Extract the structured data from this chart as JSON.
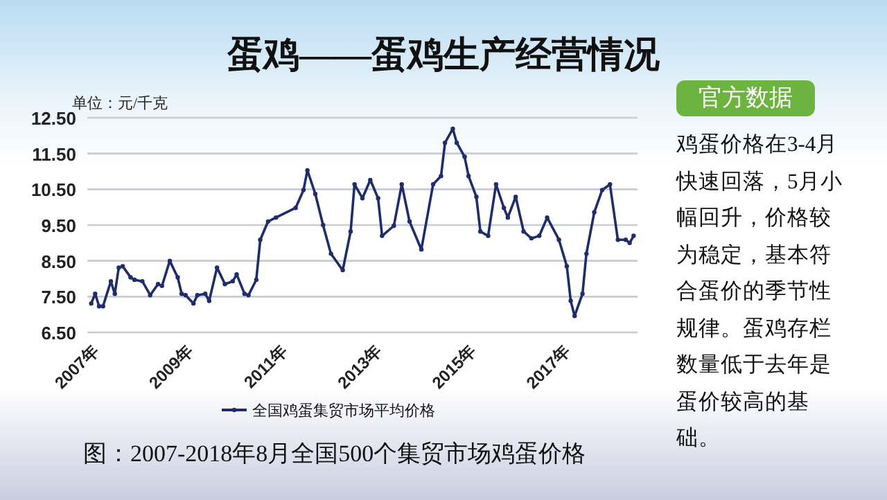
{
  "chart_data": {
    "type": "line",
    "title": "蛋鸡——蛋鸡生产经营情况",
    "ylabel": "单位：元/千克",
    "x": [
      "2007-01",
      "2007-02",
      "2007-03",
      "2007-04",
      "2007-06",
      "2007-07",
      "2007-08",
      "2007-09",
      "2007-11",
      "2007-12",
      "2008-02",
      "2008-04",
      "2008-06",
      "2008-07",
      "2008-09",
      "2008-11",
      "2008-12",
      "2009-01",
      "2009-03",
      "2009-04",
      "2009-06",
      "2009-07",
      "2009-09",
      "2009-11",
      "2010-01",
      "2010-02",
      "2010-04",
      "2010-05",
      "2010-07",
      "2010-08",
      "2010-10",
      "2010-12",
      "2011-05",
      "2011-07",
      "2011-08",
      "2011-10",
      "2011-12",
      "2012-02",
      "2012-05",
      "2012-07",
      "2012-08",
      "2012-10",
      "2012-12",
      "2013-02",
      "2013-03",
      "2013-06",
      "2013-08",
      "2013-10",
      "2014-01",
      "2014-04",
      "2014-06",
      "2014-07",
      "2014-09",
      "2014-10",
      "2014-12",
      "2015-01",
      "2015-03",
      "2015-04",
      "2015-06",
      "2015-08",
      "2015-10",
      "2015-11",
      "2016-01",
      "2016-03",
      "2016-05",
      "2016-07",
      "2016-09",
      "2016-12",
      "2017-02",
      "2017-03",
      "2017-04",
      "2017-06",
      "2017-07",
      "2017-09",
      "2017-11",
      "2018-01",
      "2018-03",
      "2018-05",
      "2018-06",
      "2018-07"
    ],
    "series": [
      {
        "name": "全国鸡蛋集贸市场平均价格",
        "color": "#1f2d6b",
        "values": [
          7.31,
          7.58,
          7.23,
          7.23,
          7.93,
          7.58,
          8.31,
          8.35,
          8.04,
          7.97,
          7.93,
          7.54,
          7.85,
          7.8,
          8.5,
          8.04,
          7.58,
          7.54,
          7.31,
          7.54,
          7.58,
          7.38,
          8.31,
          7.85,
          7.93,
          8.12,
          7.58,
          7.54,
          7.97,
          9.09,
          9.6,
          9.71,
          9.98,
          10.48,
          11.03,
          10.37,
          9.5,
          8.7,
          8.24,
          9.32,
          10.64,
          10.25,
          10.76,
          10.25,
          9.2,
          9.48,
          10.64,
          9.6,
          8.82,
          10.64,
          10.87,
          11.8,
          12.19,
          11.8,
          11.41,
          10.87,
          10.29,
          9.32,
          9.2,
          10.64,
          9.98,
          9.71,
          10.29,
          9.32,
          9.13,
          9.2,
          9.71,
          9.09,
          8.35,
          7.38,
          6.96,
          7.58,
          8.7,
          9.86,
          10.48,
          10.64,
          9.09,
          9.09,
          9.0,
          9.2
        ]
      }
    ],
    "xlim": [
      "2006-12",
      "2018-08"
    ],
    "xticks": [
      {
        "value": "2007-01",
        "label": "2007年"
      },
      {
        "value": "2009-01",
        "label": "2009年"
      },
      {
        "value": "2011-01",
        "label": "2011年"
      },
      {
        "value": "2013-01",
        "label": "2013年"
      },
      {
        "value": "2015-01",
        "label": "2015年"
      },
      {
        "value": "2017-01",
        "label": "2017年"
      }
    ],
    "ylim": [
      6.5,
      12.5
    ],
    "yticks": [
      {
        "value": 6.5,
        "label": "6.50"
      },
      {
        "value": 7.5,
        "label": "7.50"
      },
      {
        "value": 8.5,
        "label": "8.50"
      },
      {
        "value": 9.5,
        "label": "9.50"
      },
      {
        "value": 10.5,
        "label": "10.50"
      },
      {
        "value": 11.5,
        "label": "11.50"
      },
      {
        "value": 12.5,
        "label": "12.50"
      }
    ],
    "grid": "y",
    "legend": "bottom",
    "marker": "circle",
    "line_style": "solid",
    "annotations": [
      "官方数据",
      "鸡蛋价格在3-4月快速回落，5月小幅回升，价格较为稳定，基本符合蛋价的季节性规律。蛋鸡存栏数量低于去年是蛋价较高的基础。",
      "图：2007-2018年8月全国500个集贸市场鸡蛋价格"
    ]
  }
}
